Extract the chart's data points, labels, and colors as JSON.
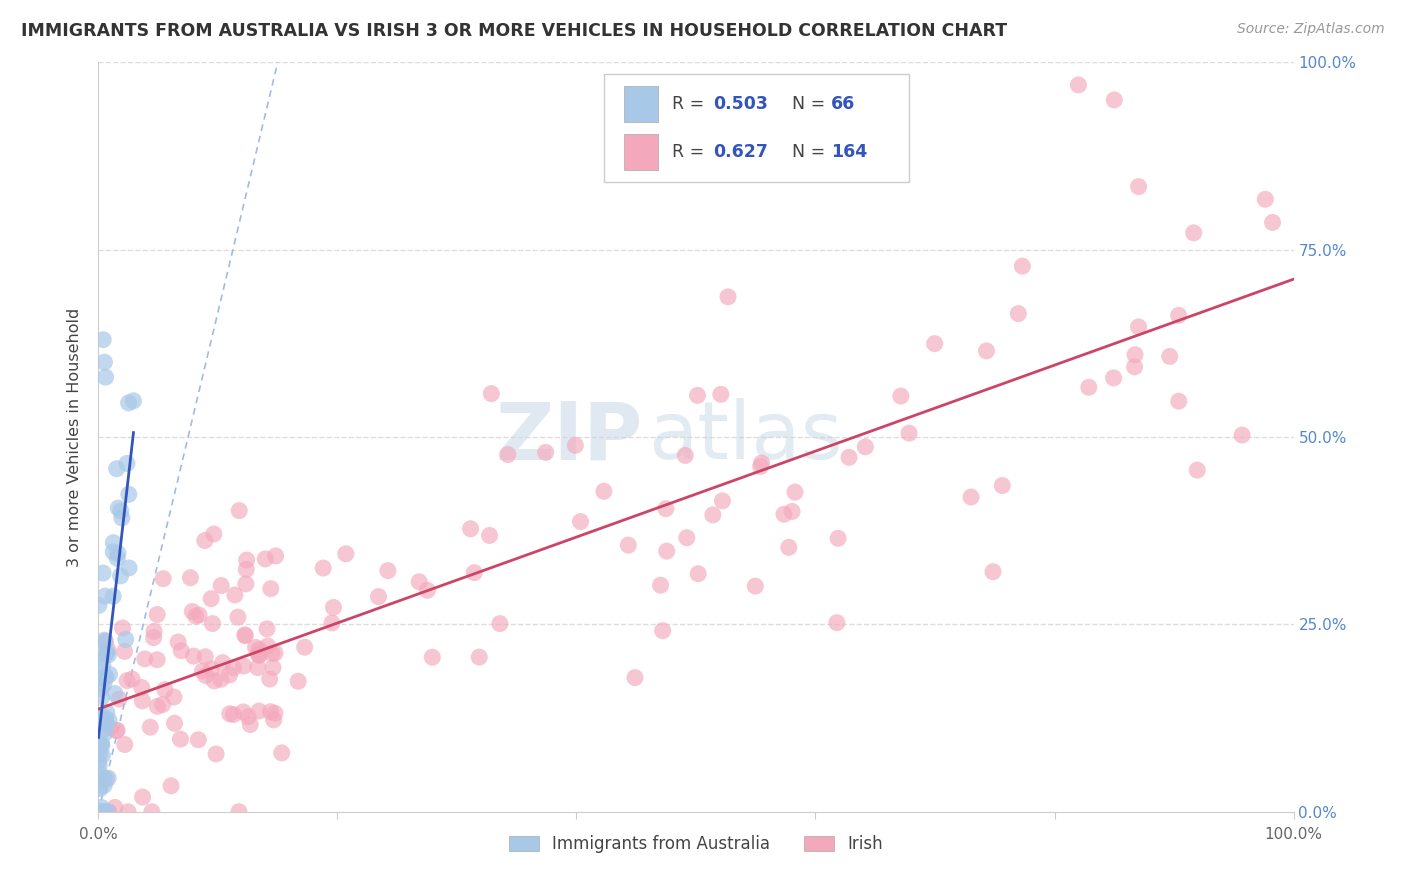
{
  "title": "IMMIGRANTS FROM AUSTRALIA VS IRISH 3 OR MORE VEHICLES IN HOUSEHOLD CORRELATION CHART",
  "source": "Source: ZipAtlas.com",
  "ylabel": "3 or more Vehicles in Household",
  "legend1_label": "Immigrants from Australia",
  "legend2_label": "Irish",
  "R_australia": 0.503,
  "N_australia": 66,
  "R_irish": 0.627,
  "N_irish": 164,
  "color_australia": "#a8c8e8",
  "color_irish": "#f4a8bc",
  "trendline_australia": "#3355bb",
  "trendline_irish": "#cc4466",
  "watermark_zip": "ZIP",
  "watermark_atlas": "atlas",
  "background_color": "#ffffff",
  "grid_color": "#dddddd",
  "right_tick_color": "#5588cc",
  "title_color": "#333333",
  "source_color": "#999999"
}
